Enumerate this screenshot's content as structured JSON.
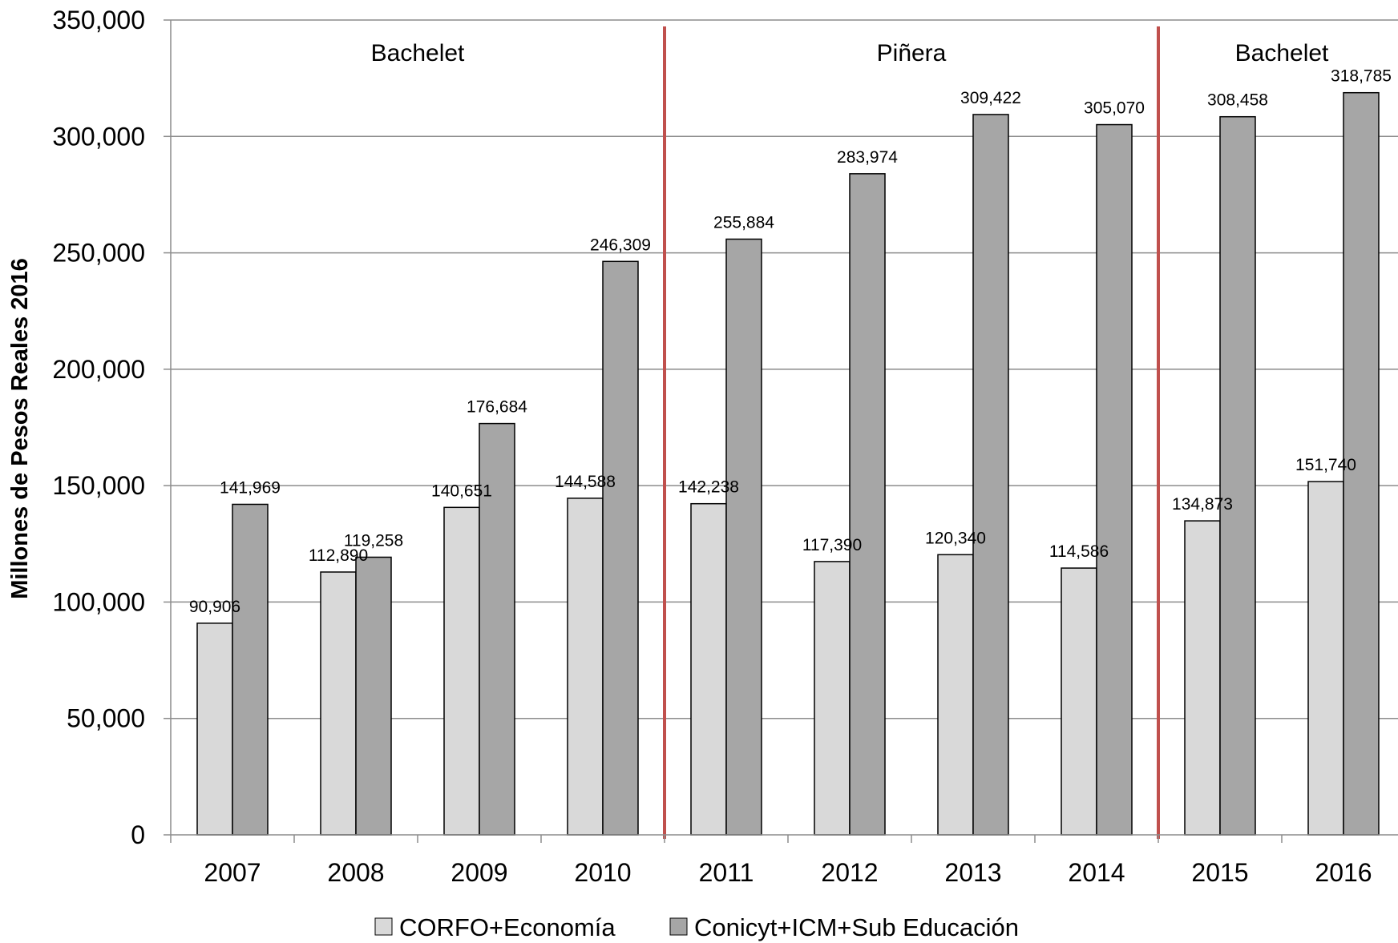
{
  "chart_data": {
    "type": "bar",
    "title": "",
    "xlabel": "",
    "ylabel": "Millones de Pesos Reales 2016",
    "ylim": [
      0,
      350000
    ],
    "ytick_step": 50000,
    "yticks": [
      "0",
      "50,000",
      "100,000",
      "150,000",
      "200,000",
      "250,000",
      "300,000",
      "350,000"
    ],
    "categories": [
      "2007",
      "2008",
      "2009",
      "2010",
      "2011",
      "2012",
      "2013",
      "2014",
      "2015",
      "2016"
    ],
    "series": [
      {
        "name": "CORFO+Economía",
        "color": "#d9d9d9",
        "values": [
          90906,
          112890,
          140651,
          144588,
          142238,
          117390,
          120340,
          114586,
          134873,
          151740
        ],
        "labels": [
          "90,906",
          "112,890",
          "140,651",
          "144,588",
          "142,238",
          "117,390",
          "120,340",
          "114,586",
          "134,873",
          "151,740"
        ]
      },
      {
        "name": "Conicyt+ICM+Sub Educación",
        "color": "#a6a6a6",
        "values": [
          141969,
          119258,
          176684,
          246309,
          255884,
          283974,
          309422,
          305070,
          308458,
          318785
        ],
        "labels": [
          "141,969",
          "119,258",
          "176,684",
          "246,309",
          "255,884",
          "283,974",
          "309,422",
          "305,070",
          "308,458",
          "318,785"
        ]
      }
    ],
    "periods": [
      {
        "label": "Bachelet",
        "from": 0,
        "to": 3
      },
      {
        "label": "Piñera",
        "from": 4,
        "to": 7
      },
      {
        "label": "Bachelet",
        "from": 8,
        "to": 9
      }
    ],
    "divider_color": "#c0504d",
    "grid": true,
    "legend_position": "bottom"
  }
}
